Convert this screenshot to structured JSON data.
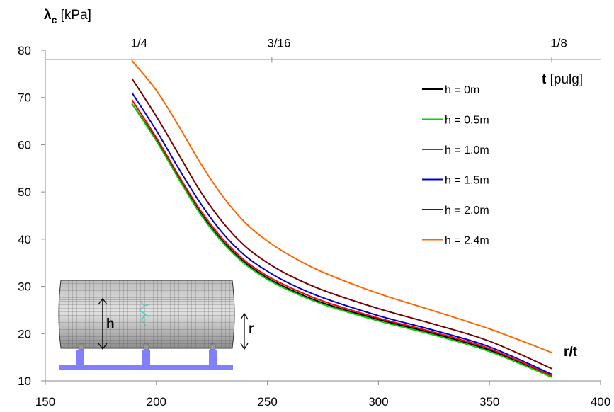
{
  "chart_data": {
    "type": "line",
    "ylabel": {
      "symbol": "λ",
      "subscript": "c",
      "unit": " [kPa]"
    },
    "xlabel": "r/t",
    "top_axis_label": {
      "symbol": "t",
      "unit": " [pulg]"
    },
    "top_axis_ticks": [
      {
        "label": "1/4",
        "rt": 189
      },
      {
        "label": "3/16",
        "rt": 252
      },
      {
        "label": "1/8",
        "rt": 378
      }
    ],
    "xlim": [
      150,
      400
    ],
    "ylim": [
      10,
      80
    ],
    "x_ticks": [
      150,
      200,
      250,
      300,
      350,
      400
    ],
    "y_ticks": [
      10,
      20,
      30,
      40,
      50,
      60,
      70,
      80
    ],
    "legend_position": "top-right",
    "series": [
      {
        "name": "h = 0m",
        "color": "#000000",
        "points": [
          [
            189,
            68.7
          ],
          [
            200,
            61.0
          ],
          [
            210,
            53.0
          ],
          [
            220,
            45.5
          ],
          [
            230,
            39.5
          ],
          [
            240,
            35.0
          ],
          [
            250,
            31.8
          ],
          [
            260,
            29.4
          ],
          [
            275,
            26.5
          ],
          [
            300,
            23.0
          ],
          [
            325,
            20.0
          ],
          [
            350,
            16.5
          ],
          [
            378,
            11.0
          ]
        ]
      },
      {
        "name": "h = 0.5m",
        "color": "#00d400",
        "points": [
          [
            189,
            68.7
          ],
          [
            200,
            60.8
          ],
          [
            210,
            52.8
          ],
          [
            220,
            45.2
          ],
          [
            230,
            39.2
          ],
          [
            240,
            34.7
          ],
          [
            250,
            31.5
          ],
          [
            260,
            29.1
          ],
          [
            275,
            26.2
          ],
          [
            300,
            22.7
          ],
          [
            325,
            19.7
          ],
          [
            350,
            16.2
          ],
          [
            378,
            10.8
          ]
        ]
      },
      {
        "name": "h = 1.0m",
        "color": "#ff0000",
        "points": [
          [
            189,
            69.5
          ],
          [
            200,
            61.5
          ],
          [
            210,
            53.5
          ],
          [
            220,
            46.0
          ],
          [
            230,
            40.0
          ],
          [
            240,
            35.4
          ],
          [
            250,
            32.2
          ],
          [
            260,
            29.8
          ],
          [
            275,
            26.9
          ],
          [
            300,
            23.3
          ],
          [
            325,
            20.3
          ],
          [
            350,
            16.8
          ],
          [
            378,
            11.1
          ]
        ]
      },
      {
        "name": "h = 1.5m",
        "color": "#0000cc",
        "points": [
          [
            189,
            71.0
          ],
          [
            200,
            63.0
          ],
          [
            210,
            55.0
          ],
          [
            220,
            47.5
          ],
          [
            230,
            41.2
          ],
          [
            240,
            36.5
          ],
          [
            250,
            33.2
          ],
          [
            260,
            30.6
          ],
          [
            275,
            27.6
          ],
          [
            300,
            23.8
          ],
          [
            325,
            20.7
          ],
          [
            350,
            17.2
          ],
          [
            378,
            11.4
          ]
        ]
      },
      {
        "name": "h = 2.0m",
        "color": "#7a0000",
        "points": [
          [
            189,
            74.0
          ],
          [
            200,
            66.0
          ],
          [
            210,
            58.0
          ],
          [
            220,
            50.0
          ],
          [
            230,
            43.5
          ],
          [
            240,
            38.5
          ],
          [
            250,
            35.0
          ],
          [
            260,
            32.3
          ],
          [
            275,
            29.2
          ],
          [
            300,
            25.3
          ],
          [
            325,
            22.0
          ],
          [
            350,
            18.4
          ],
          [
            378,
            12.6
          ]
        ]
      },
      {
        "name": "h = 2.4m",
        "color": "#ff6600",
        "points": [
          [
            189,
            77.8
          ],
          [
            200,
            71.5
          ],
          [
            210,
            64.0
          ],
          [
            220,
            56.0
          ],
          [
            230,
            49.0
          ],
          [
            240,
            43.5
          ],
          [
            250,
            39.6
          ],
          [
            260,
            36.6
          ],
          [
            275,
            33.0
          ],
          [
            300,
            28.5
          ],
          [
            325,
            24.8
          ],
          [
            350,
            21.0
          ],
          [
            378,
            16.0
          ]
        ]
      }
    ]
  },
  "inset": {
    "h_label": "h",
    "r_label": "r"
  }
}
